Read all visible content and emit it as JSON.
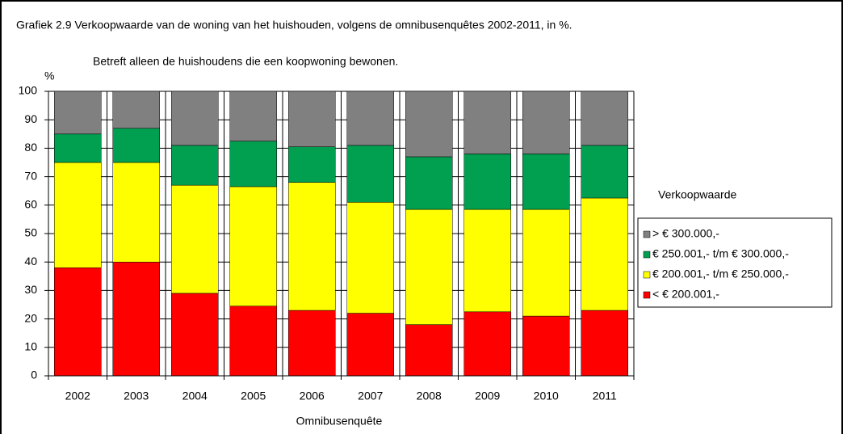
{
  "chart_data": {
    "type": "stacked_bar",
    "title": "Grafiek 2.9 Verkoopwaarde van de woning van het huishouden,  volgens de omnibusenquêtes  2002-2011, in %.",
    "subtitle": "Betreft alleen de huishoudens  die een koopwoning bewonen.",
    "y_label": "%",
    "x_label": "Omnibusenquête",
    "legend_title": "Verkoopwaarde",
    "legend": "right",
    "grid": true,
    "categories": [
      "2002",
      "2003",
      "2004",
      "2005",
      "2006",
      "2007",
      "2008",
      "2009",
      "2010",
      "2011"
    ],
    "series": [
      {
        "name": "< € 200.001,-",
        "color": "#ff0000",
        "values": [
          38,
          40,
          29,
          24.5,
          23,
          22,
          18,
          22.5,
          21,
          23
        ]
      },
      {
        "name": "€ 200.001,- t/m € 250.000,-",
        "color": "#ffff00",
        "values": [
          37,
          35,
          38,
          42,
          45,
          39,
          40.5,
          36,
          37.5,
          39.5
        ]
      },
      {
        "name": "€ 250.001,- t/m € 300.000,-",
        "color": "#00a050",
        "values": [
          10,
          12,
          14,
          16,
          12.5,
          20,
          18.5,
          19.5,
          19.5,
          18.5
        ]
      },
      {
        "name": "> € 300.000,-",
        "color": "#808080",
        "values": [
          15,
          13,
          19,
          17.5,
          19.5,
          19,
          23,
          22,
          22,
          19
        ]
      }
    ],
    "ylim": [
      0,
      100
    ],
    "yticks": [
      0,
      10,
      20,
      30,
      40,
      50,
      60,
      70,
      80,
      90,
      100
    ]
  }
}
